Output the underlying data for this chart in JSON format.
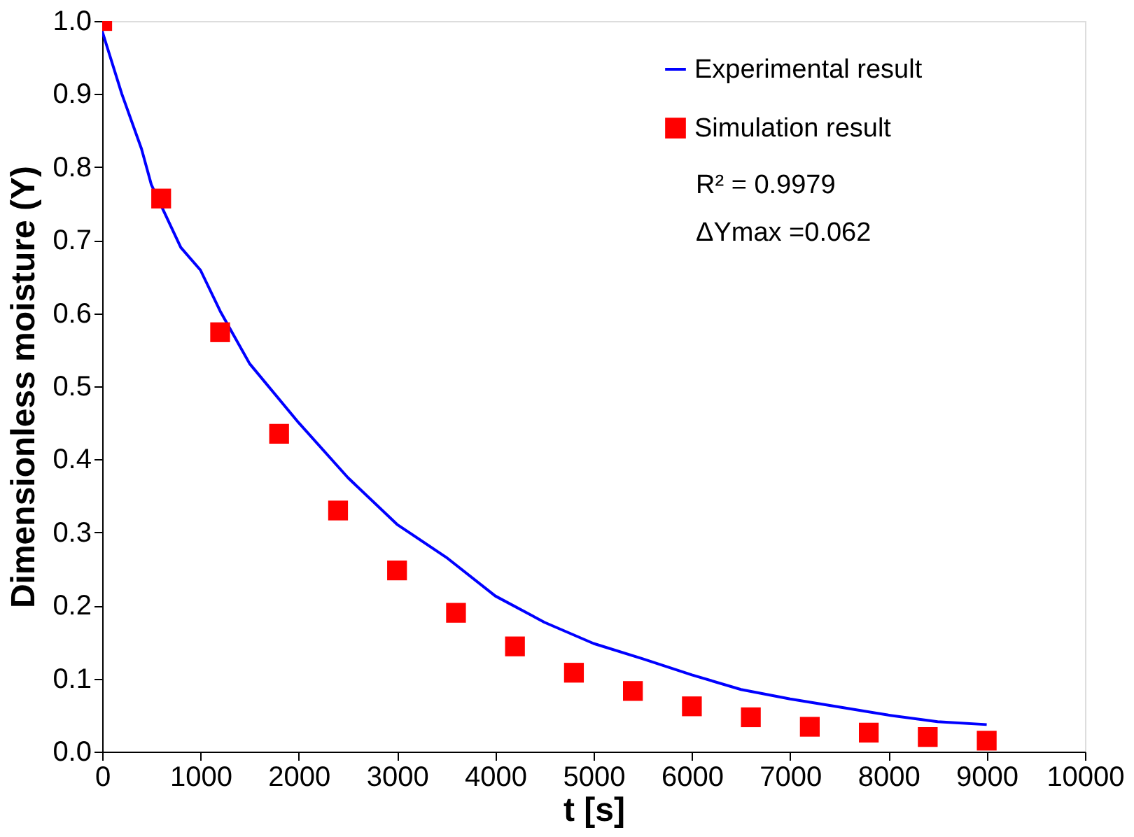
{
  "chart_data": {
    "type": "line",
    "xlabel": "t [s]",
    "ylabel": "Dimensionless moisture (Y)",
    "xlim": [
      0,
      10000
    ],
    "xticks": [
      0,
      1000,
      2000,
      3000,
      4000,
      5000,
      6000,
      7000,
      8000,
      9000,
      10000
    ],
    "ylim": [
      0,
      1
    ],
    "yticks": [
      {
        "value": 0,
        "label": "0.0"
      },
      0.1,
      0.2,
      0.3,
      0.4,
      0.5,
      0.6,
      0.7,
      0.8,
      0.9,
      {
        "value": 1,
        "label": "1.0"
      }
    ],
    "grid": false,
    "legend": "top right",
    "line_style": "solid",
    "series": [
      {
        "name": "Experimental result",
        "type": "line",
        "color": "#0000ff",
        "marker": "none",
        "x": [
          0,
          200,
          400,
          500,
          800,
          1000,
          1200,
          1500,
          2000,
          2500,
          3000,
          3500,
          4000,
          4500,
          5000,
          5500,
          6000,
          6500,
          7000,
          7500,
          8000,
          8500,
          9000
        ],
        "values": [
          0.986,
          0.9,
          0.825,
          0.776,
          0.69,
          0.659,
          0.603,
          0.531,
          0.45,
          0.375,
          0.311,
          0.266,
          0.213,
          0.177,
          0.148,
          0.127,
          0.105,
          0.085,
          0.072,
          0.061,
          0.05,
          0.041,
          0.037
        ]
      },
      {
        "name": "Simulation result",
        "type": "scatter",
        "color": "#ff0000",
        "marker": "square",
        "x": [
          0,
          600,
          1200,
          1800,
          2400,
          3000,
          3600,
          4200,
          4800,
          5400,
          6000,
          6600,
          7200,
          7800,
          8400,
          9000
        ],
        "values": [
          1.0,
          0.757,
          0.574,
          0.435,
          0.33,
          0.248,
          0.19,
          0.144,
          0.108,
          0.083,
          0.062,
          0.047,
          0.034,
          0.026,
          0.02,
          0.015
        ]
      }
    ],
    "annotations": [
      "R² = 0.9979",
      "ΔYmax =0.062"
    ]
  }
}
